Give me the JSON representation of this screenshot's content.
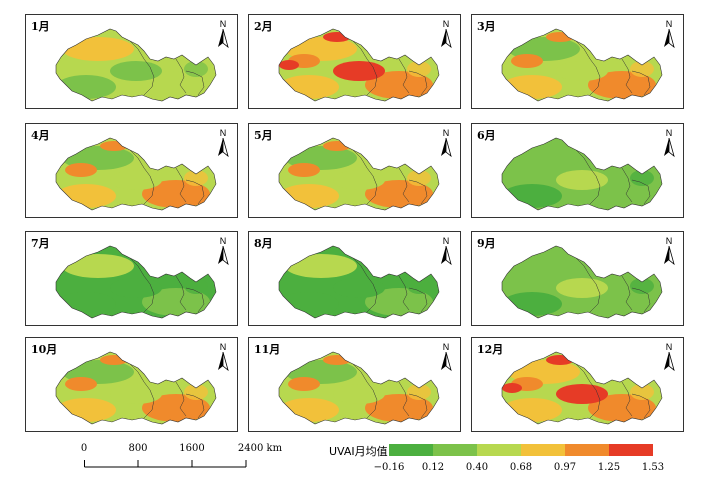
{
  "panels": [
    {
      "label": "1月",
      "level": 2
    },
    {
      "label": "2月",
      "level": 4
    },
    {
      "label": "3月",
      "level": 3
    },
    {
      "label": "4月",
      "level": 3
    },
    {
      "label": "5月",
      "level": 3
    },
    {
      "label": "6月",
      "level": 1
    },
    {
      "label": "7月",
      "level": 0
    },
    {
      "label": "8月",
      "level": 0
    },
    {
      "label": "9月",
      "level": 1
    },
    {
      "label": "10月",
      "level": 3
    },
    {
      "label": "11月",
      "level": 3
    },
    {
      "label": "12月",
      "level": 4
    }
  ],
  "north_label": "N",
  "scalebar": {
    "ticks": [
      "0",
      "800",
      "1600",
      "2400 km"
    ]
  },
  "legend": {
    "title": "UVAI月均值",
    "ticks": [
      "−0.16",
      "0.12",
      "0.40",
      "0.68",
      "0.97",
      "1.25",
      "1.53"
    ],
    "colors": [
      "#4caf3f",
      "#7cc24a",
      "#b7d84f",
      "#f2c13a",
      "#f08a2c",
      "#e63b26"
    ]
  },
  "colors": {
    "green_dark": "#4caf3f",
    "green": "#7cc24a",
    "yellow_green": "#b7d84f",
    "orange_yellow": "#f2c13a",
    "orange": "#f08a2c",
    "red": "#e63b26"
  }
}
